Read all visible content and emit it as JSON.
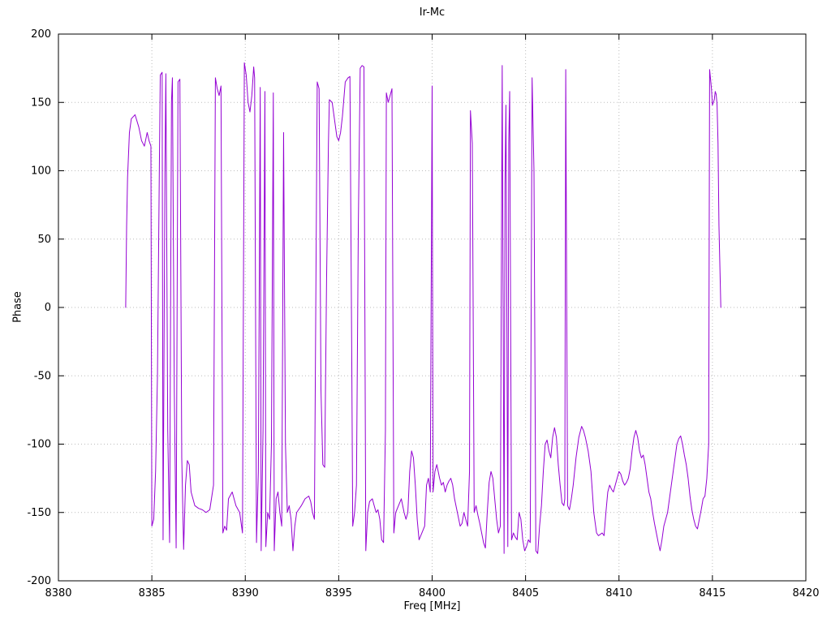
{
  "chart_data": {
    "type": "line",
    "title": "Ir-Mc",
    "xlabel": "Freq [MHz]",
    "ylabel": "Phase",
    "xlim": [
      8380,
      8420
    ],
    "ylim": [
      -200,
      200
    ],
    "xticks": [
      8380,
      8385,
      8390,
      8395,
      8400,
      8405,
      8410,
      8415,
      8420
    ],
    "yticks": [
      -200,
      -150,
      -100,
      -50,
      0,
      50,
      100,
      150,
      200
    ],
    "grid": true,
    "legend": "none",
    "colors": {
      "line": "#9400d3",
      "grid": "#bbbbbb",
      "border": "#000000"
    },
    "series": [
      {
        "name": "phase",
        "color": "#9400d3",
        "points": [
          [
            8383.6,
            0
          ],
          [
            8383.65,
            60
          ],
          [
            8383.7,
            95
          ],
          [
            8383.8,
            128
          ],
          [
            8383.9,
            138
          ],
          [
            8384.1,
            141
          ],
          [
            8384.3,
            132
          ],
          [
            8384.45,
            122
          ],
          [
            8384.6,
            118
          ],
          [
            8384.75,
            128
          ],
          [
            8384.85,
            122
          ],
          [
            8384.95,
            118
          ],
          [
            8385.0,
            -160
          ],
          [
            8385.1,
            -155
          ],
          [
            8385.2,
            -120
          ],
          [
            8385.3,
            -50
          ],
          [
            8385.4,
            100
          ],
          [
            8385.45,
            170
          ],
          [
            8385.55,
            172
          ],
          [
            8385.6,
            -170
          ],
          [
            8385.7,
            100
          ],
          [
            8385.75,
            171
          ],
          [
            8385.85,
            -90
          ],
          [
            8385.95,
            -172
          ],
          [
            8386.05,
            150
          ],
          [
            8386.1,
            168
          ],
          [
            8386.2,
            -60
          ],
          [
            8386.3,
            -176
          ],
          [
            8386.4,
            165
          ],
          [
            8386.5,
            167
          ],
          [
            8386.6,
            -110
          ],
          [
            8386.7,
            -177
          ],
          [
            8386.8,
            -130
          ],
          [
            8386.9,
            -112
          ],
          [
            8387.0,
            -115
          ],
          [
            8387.1,
            -135
          ],
          [
            8387.3,
            -145
          ],
          [
            8387.5,
            -147
          ],
          [
            8387.7,
            -148
          ],
          [
            8387.9,
            -150
          ],
          [
            8388.1,
            -148
          ],
          [
            8388.3,
            -130
          ],
          [
            8388.4,
            168
          ],
          [
            8388.5,
            160
          ],
          [
            8388.6,
            155
          ],
          [
            8388.7,
            162
          ],
          [
            8388.8,
            -165
          ],
          [
            8388.9,
            -160
          ],
          [
            8389.0,
            -163
          ],
          [
            8389.1,
            -140
          ],
          [
            8389.3,
            -135
          ],
          [
            8389.5,
            -145
          ],
          [
            8389.7,
            -150
          ],
          [
            8389.85,
            -165
          ],
          [
            8389.95,
            179
          ],
          [
            8390.05,
            170
          ],
          [
            8390.15,
            150
          ],
          [
            8390.25,
            143
          ],
          [
            8390.35,
            155
          ],
          [
            8390.45,
            176
          ],
          [
            8390.5,
            168
          ],
          [
            8390.6,
            -172
          ],
          [
            8390.7,
            -120
          ],
          [
            8390.8,
            161
          ],
          [
            8390.85,
            -178
          ],
          [
            8390.95,
            -90
          ],
          [
            8391.05,
            158
          ],
          [
            8391.1,
            -175
          ],
          [
            8391.2,
            -150
          ],
          [
            8391.3,
            -155
          ],
          [
            8391.4,
            -100
          ],
          [
            8391.5,
            157
          ],
          [
            8391.55,
            -178
          ],
          [
            8391.65,
            -140
          ],
          [
            8391.75,
            -135
          ],
          [
            8391.85,
            -150
          ],
          [
            8391.95,
            -160
          ],
          [
            8392.05,
            128
          ],
          [
            8392.15,
            -100
          ],
          [
            8392.25,
            -150
          ],
          [
            8392.35,
            -145
          ],
          [
            8392.45,
            -155
          ],
          [
            8392.55,
            -178
          ],
          [
            8392.65,
            -160
          ],
          [
            8392.75,
            -150
          ],
          [
            8392.85,
            -148
          ],
          [
            8393.0,
            -145
          ],
          [
            8393.2,
            -140
          ],
          [
            8393.4,
            -138
          ],
          [
            8393.5,
            -142
          ],
          [
            8393.6,
            -150
          ],
          [
            8393.7,
            -155
          ],
          [
            8393.85,
            165
          ],
          [
            8393.95,
            160
          ],
          [
            8394.05,
            -60
          ],
          [
            8394.15,
            -115
          ],
          [
            8394.25,
            -117
          ],
          [
            8394.35,
            20
          ],
          [
            8394.45,
            120
          ],
          [
            8394.5,
            152
          ],
          [
            8394.65,
            150
          ],
          [
            8394.8,
            135
          ],
          [
            8394.9,
            125
          ],
          [
            8395.0,
            122
          ],
          [
            8395.1,
            128
          ],
          [
            8395.2,
            140
          ],
          [
            8395.35,
            165
          ],
          [
            8395.5,
            168
          ],
          [
            8395.6,
            169
          ],
          [
            8395.7,
            -40
          ],
          [
            8395.75,
            -160
          ],
          [
            8395.85,
            -150
          ],
          [
            8395.95,
            -130
          ],
          [
            8396.05,
            60
          ],
          [
            8396.15,
            175
          ],
          [
            8396.25,
            177
          ],
          [
            8396.35,
            176
          ],
          [
            8396.45,
            -178
          ],
          [
            8396.55,
            -150
          ],
          [
            8396.65,
            -142
          ],
          [
            8396.8,
            -140
          ],
          [
            8396.9,
            -145
          ],
          [
            8397.0,
            -150
          ],
          [
            8397.1,
            -148
          ],
          [
            8397.2,
            -155
          ],
          [
            8397.3,
            -170
          ],
          [
            8397.4,
            -172
          ],
          [
            8397.5,
            -90
          ],
          [
            8397.55,
            157
          ],
          [
            8397.65,
            150
          ],
          [
            8397.75,
            155
          ],
          [
            8397.85,
            160
          ],
          [
            8397.95,
            -165
          ],
          [
            8398.05,
            -150
          ],
          [
            8398.2,
            -145
          ],
          [
            8398.35,
            -140
          ],
          [
            8398.5,
            -150
          ],
          [
            8398.6,
            -155
          ],
          [
            8398.7,
            -150
          ],
          [
            8398.8,
            -120
          ],
          [
            8398.9,
            -105
          ],
          [
            8399.0,
            -110
          ],
          [
            8399.1,
            -130
          ],
          [
            8399.2,
            -155
          ],
          [
            8399.3,
            -170
          ],
          [
            8399.45,
            -165
          ],
          [
            8399.6,
            -160
          ],
          [
            8399.7,
            -130
          ],
          [
            8399.8,
            -125
          ],
          [
            8399.9,
            -135
          ],
          [
            8400.0,
            162
          ],
          [
            8400.05,
            -135
          ],
          [
            8400.15,
            -120
          ],
          [
            8400.25,
            -115
          ],
          [
            8400.4,
            -125
          ],
          [
            8400.5,
            -130
          ],
          [
            8400.6,
            -128
          ],
          [
            8400.7,
            -135
          ],
          [
            8400.8,
            -130
          ],
          [
            8400.9,
            -127
          ],
          [
            8401.0,
            -125
          ],
          [
            8401.1,
            -130
          ],
          [
            8401.2,
            -140
          ],
          [
            8401.35,
            -150
          ],
          [
            8401.5,
            -160
          ],
          [
            8401.6,
            -158
          ],
          [
            8401.7,
            -150
          ],
          [
            8401.8,
            -155
          ],
          [
            8401.9,
            -160
          ],
          [
            8402.0,
            -120
          ],
          [
            8402.05,
            144
          ],
          [
            8402.15,
            120
          ],
          [
            8402.25,
            -150
          ],
          [
            8402.35,
            -145
          ],
          [
            8402.45,
            -152
          ],
          [
            8402.55,
            -158
          ],
          [
            8402.65,
            -165
          ],
          [
            8402.75,
            -172
          ],
          [
            8402.85,
            -176
          ],
          [
            8402.95,
            -150
          ],
          [
            8403.05,
            -128
          ],
          [
            8403.15,
            -120
          ],
          [
            8403.25,
            -125
          ],
          [
            8403.35,
            -140
          ],
          [
            8403.45,
            -155
          ],
          [
            8403.55,
            -165
          ],
          [
            8403.65,
            -160
          ],
          [
            8403.75,
            177
          ],
          [
            8403.85,
            -180
          ],
          [
            8403.9,
            90
          ],
          [
            8403.95,
            148
          ],
          [
            8404.05,
            -175
          ],
          [
            8404.1,
            120
          ],
          [
            8404.15,
            158
          ],
          [
            8404.25,
            -170
          ],
          [
            8404.35,
            -165
          ],
          [
            8404.45,
            -168
          ],
          [
            8404.55,
            -170
          ],
          [
            8404.65,
            -150
          ],
          [
            8404.75,
            -155
          ],
          [
            8404.85,
            -170
          ],
          [
            8404.95,
            -178
          ],
          [
            8405.05,
            -175
          ],
          [
            8405.15,
            -170
          ],
          [
            8405.25,
            -172
          ],
          [
            8405.35,
            168
          ],
          [
            8405.45,
            100
          ],
          [
            8405.55,
            -178
          ],
          [
            8405.65,
            -180
          ],
          [
            8405.75,
            -160
          ],
          [
            8405.85,
            -145
          ],
          [
            8405.95,
            -120
          ],
          [
            8406.05,
            -100
          ],
          [
            8406.15,
            -97
          ],
          [
            8406.25,
            -105
          ],
          [
            8406.35,
            -110
          ],
          [
            8406.45,
            -95
          ],
          [
            8406.55,
            -88
          ],
          [
            8406.65,
            -95
          ],
          [
            8406.75,
            -115
          ],
          [
            8406.85,
            -130
          ],
          [
            8406.95,
            -143
          ],
          [
            8407.05,
            -145
          ],
          [
            8407.1,
            -140
          ],
          [
            8407.15,
            174
          ],
          [
            8407.25,
            -145
          ],
          [
            8407.35,
            -148
          ],
          [
            8407.45,
            -140
          ],
          [
            8407.55,
            -130
          ],
          [
            8407.7,
            -110
          ],
          [
            8407.85,
            -95
          ],
          [
            8408.0,
            -87
          ],
          [
            8408.1,
            -90
          ],
          [
            8408.2,
            -95
          ],
          [
            8408.35,
            -105
          ],
          [
            8408.5,
            -120
          ],
          [
            8408.65,
            -150
          ],
          [
            8408.8,
            -165
          ],
          [
            8408.9,
            -167
          ],
          [
            8409.0,
            -166
          ],
          [
            8409.1,
            -165
          ],
          [
            8409.2,
            -167
          ],
          [
            8409.3,
            -150
          ],
          [
            8409.4,
            -135
          ],
          [
            8409.5,
            -130
          ],
          [
            8409.6,
            -133
          ],
          [
            8409.7,
            -135
          ],
          [
            8409.8,
            -130
          ],
          [
            8409.9,
            -125
          ],
          [
            8410.0,
            -120
          ],
          [
            8410.1,
            -122
          ],
          [
            8410.2,
            -127
          ],
          [
            8410.3,
            -130
          ],
          [
            8410.4,
            -128
          ],
          [
            8410.5,
            -125
          ],
          [
            8410.6,
            -118
          ],
          [
            8410.7,
            -105
          ],
          [
            8410.8,
            -95
          ],
          [
            8410.9,
            -90
          ],
          [
            8411.0,
            -95
          ],
          [
            8411.1,
            -105
          ],
          [
            8411.2,
            -110
          ],
          [
            8411.3,
            -108
          ],
          [
            8411.4,
            -115
          ],
          [
            8411.5,
            -125
          ],
          [
            8411.6,
            -135
          ],
          [
            8411.7,
            -140
          ],
          [
            8411.8,
            -150
          ],
          [
            8411.9,
            -158
          ],
          [
            8412.0,
            -165
          ],
          [
            8412.1,
            -172
          ],
          [
            8412.2,
            -178
          ],
          [
            8412.3,
            -170
          ],
          [
            8412.4,
            -160
          ],
          [
            8412.5,
            -155
          ],
          [
            8412.6,
            -150
          ],
          [
            8412.7,
            -140
          ],
          [
            8412.8,
            -130
          ],
          [
            8412.9,
            -120
          ],
          [
            8413.0,
            -110
          ],
          [
            8413.1,
            -100
          ],
          [
            8413.2,
            -96
          ],
          [
            8413.3,
            -94
          ],
          [
            8413.4,
            -100
          ],
          [
            8413.5,
            -108
          ],
          [
            8413.6,
            -115
          ],
          [
            8413.7,
            -125
          ],
          [
            8413.8,
            -138
          ],
          [
            8413.9,
            -148
          ],
          [
            8414.0,
            -155
          ],
          [
            8414.1,
            -160
          ],
          [
            8414.2,
            -162
          ],
          [
            8414.3,
            -155
          ],
          [
            8414.4,
            -148
          ],
          [
            8414.5,
            -140
          ],
          [
            8414.6,
            -138
          ],
          [
            8414.7,
            -125
          ],
          [
            8414.8,
            -100
          ],
          [
            8414.85,
            174
          ],
          [
            8414.95,
            160
          ],
          [
            8415.0,
            148
          ],
          [
            8415.1,
            152
          ],
          [
            8415.15,
            158
          ],
          [
            8415.2,
            156
          ],
          [
            8415.25,
            148
          ],
          [
            8415.3,
            120
          ],
          [
            8415.35,
            60
          ],
          [
            8415.45,
            0
          ]
        ]
      }
    ]
  }
}
